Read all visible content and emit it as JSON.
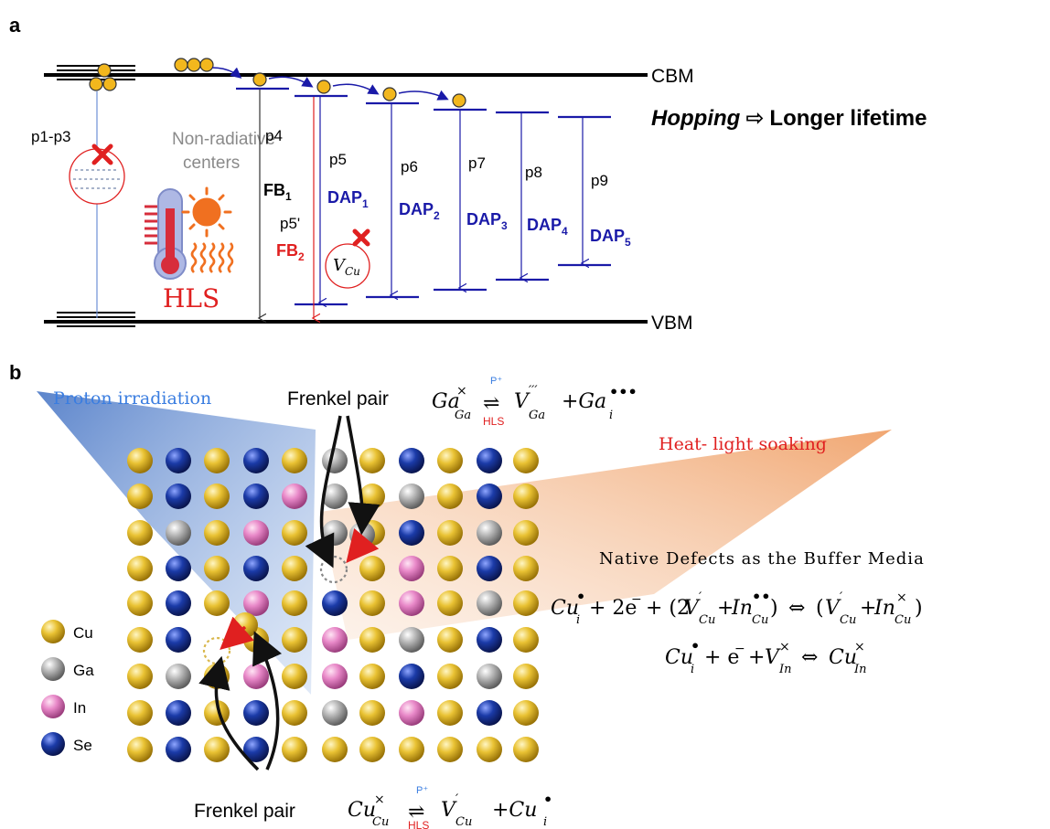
{
  "panel_a": {
    "label": "a",
    "cbm": "CBM",
    "vbm": "VBM",
    "hopping": "Hopping",
    "arrow_glyph": "⇨",
    "lifetime": "Longer lifetime",
    "p1p3": "p1-p3",
    "nonrad_1": "Non-radiative",
    "nonrad_2": "centers",
    "hls": "HLS",
    "transitions": [
      "p4",
      "p5",
      "p5'",
      "p6",
      "p7",
      "p8",
      "p9"
    ],
    "fb1": {
      "main": "FB",
      "sub": "1"
    },
    "fb2": {
      "main": "FB",
      "sub": "2"
    },
    "dap": [
      {
        "main": "DAP",
        "sub": "1"
      },
      {
        "main": "DAP",
        "sub": "2"
      },
      {
        "main": "DAP",
        "sub": "3"
      },
      {
        "main": "DAP",
        "sub": "4"
      },
      {
        "main": "DAP",
        "sub": "5"
      }
    ],
    "vcu": {
      "main": "V",
      "sub": "Cu"
    },
    "colors": {
      "blue": "#1a1aa8",
      "red": "#e02020",
      "gold": "#f2b71d",
      "gray": "#8a8a8a"
    }
  },
  "panel_b": {
    "label": "b",
    "proton": "Proton irradiation",
    "heat": "Heat- light soaking",
    "frenkel_top": "Frenkel pair",
    "frenkel_bottom": "Frenkel pair",
    "eq_top": {
      "lhs": "Ga",
      "lhs_sub": "Ga",
      "lhs_sup": "×",
      "over": "P⁺",
      "under": "HLS",
      "arrow": "⇌",
      "r1": "V",
      "r1_sub": "Ga",
      "r1_sup": "′′′",
      "r2": "+Ga",
      "r2_sub": "i",
      "r2_sup": "•••"
    },
    "eq_bottom": {
      "lhs": "Cu",
      "lhs_sub": "Cu",
      "lhs_sup": "×",
      "over": "P⁺",
      "under": "HLS",
      "arrow": "⇌",
      "r1": "V",
      "r1_sub": "Cu",
      "r1_sup": "′",
      "r2": "+Cu",
      "r2_sub": "i",
      "r2_sup": "•"
    },
    "native_title": "Native Defects as the Buffer Media",
    "legend": [
      {
        "name": "Cu",
        "color": "#e9c233"
      },
      {
        "name": "Ga",
        "color": "#b5b5b5"
      },
      {
        "name": "In",
        "color": "#e888c8"
      },
      {
        "name": "Se",
        "color": "#1b3ba8"
      }
    ]
  }
}
